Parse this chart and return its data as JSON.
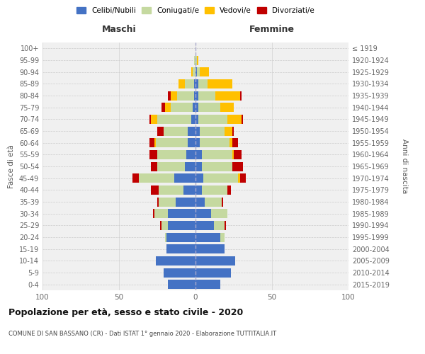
{
  "age_groups": [
    "0-4",
    "5-9",
    "10-14",
    "15-19",
    "20-24",
    "25-29",
    "30-34",
    "35-39",
    "40-44",
    "45-49",
    "50-54",
    "55-59",
    "60-64",
    "65-69",
    "70-74",
    "75-79",
    "80-84",
    "85-89",
    "90-94",
    "95-99",
    "100+"
  ],
  "birth_years": [
    "2015-2019",
    "2010-2014",
    "2005-2009",
    "2000-2004",
    "1995-1999",
    "1990-1994",
    "1985-1989",
    "1980-1984",
    "1975-1979",
    "1970-1974",
    "1965-1969",
    "1960-1964",
    "1955-1959",
    "1950-1954",
    "1945-1949",
    "1940-1944",
    "1935-1939",
    "1930-1934",
    "1925-1929",
    "1920-1924",
    "≤ 1919"
  ],
  "maschi": {
    "celibi": [
      18,
      21,
      26,
      19,
      19,
      18,
      18,
      13,
      8,
      14,
      7,
      6,
      5,
      5,
      3,
      2,
      1,
      1,
      0,
      0,
      0
    ],
    "coniugati": [
      0,
      0,
      0,
      0,
      1,
      4,
      9,
      11,
      16,
      23,
      18,
      19,
      21,
      16,
      22,
      14,
      11,
      6,
      2,
      1,
      0
    ],
    "vedovi": [
      0,
      0,
      0,
      0,
      0,
      0,
      0,
      0,
      0,
      0,
      0,
      0,
      1,
      0,
      4,
      4,
      4,
      4,
      1,
      0,
      0
    ],
    "divorziati": [
      0,
      0,
      0,
      0,
      0,
      1,
      1,
      1,
      5,
      4,
      4,
      5,
      3,
      4,
      1,
      2,
      2,
      0,
      0,
      0,
      0
    ]
  },
  "femmine": {
    "nubili": [
      16,
      23,
      26,
      19,
      16,
      12,
      10,
      6,
      4,
      5,
      4,
      4,
      3,
      3,
      2,
      2,
      2,
      2,
      1,
      0,
      0
    ],
    "coniugate": [
      0,
      0,
      0,
      0,
      3,
      7,
      11,
      11,
      17,
      23,
      20,
      20,
      19,
      16,
      19,
      14,
      11,
      6,
      2,
      1,
      0
    ],
    "vedove": [
      0,
      0,
      0,
      0,
      0,
      0,
      0,
      0,
      0,
      1,
      0,
      1,
      2,
      5,
      9,
      9,
      16,
      16,
      6,
      1,
      0
    ],
    "divorziate": [
      0,
      0,
      0,
      0,
      0,
      1,
      0,
      1,
      2,
      4,
      7,
      5,
      4,
      1,
      1,
      0,
      1,
      0,
      0,
      0,
      0
    ]
  },
  "colors": {
    "celibi": "#4472c4",
    "coniugati": "#c5d9a0",
    "vedovi": "#ffc000",
    "divorziati": "#c00000"
  },
  "title": "Popolazione per età, sesso e stato civile - 2020",
  "subtitle": "COMUNE DI SAN BASSANO (CR) - Dati ISTAT 1° gennaio 2020 - Elaborazione TUTTITALIA.IT",
  "ylabel_left": "Fasce di età",
  "ylabel_right": "Anni di nascita",
  "xlabel_left": "Maschi",
  "xlabel_right": "Femmine",
  "legend_labels": [
    "Celibi/Nubili",
    "Coniugati/e",
    "Vedovi/e",
    "Divorziati/e"
  ],
  "xlim": 100,
  "background": "#f0f0f0"
}
